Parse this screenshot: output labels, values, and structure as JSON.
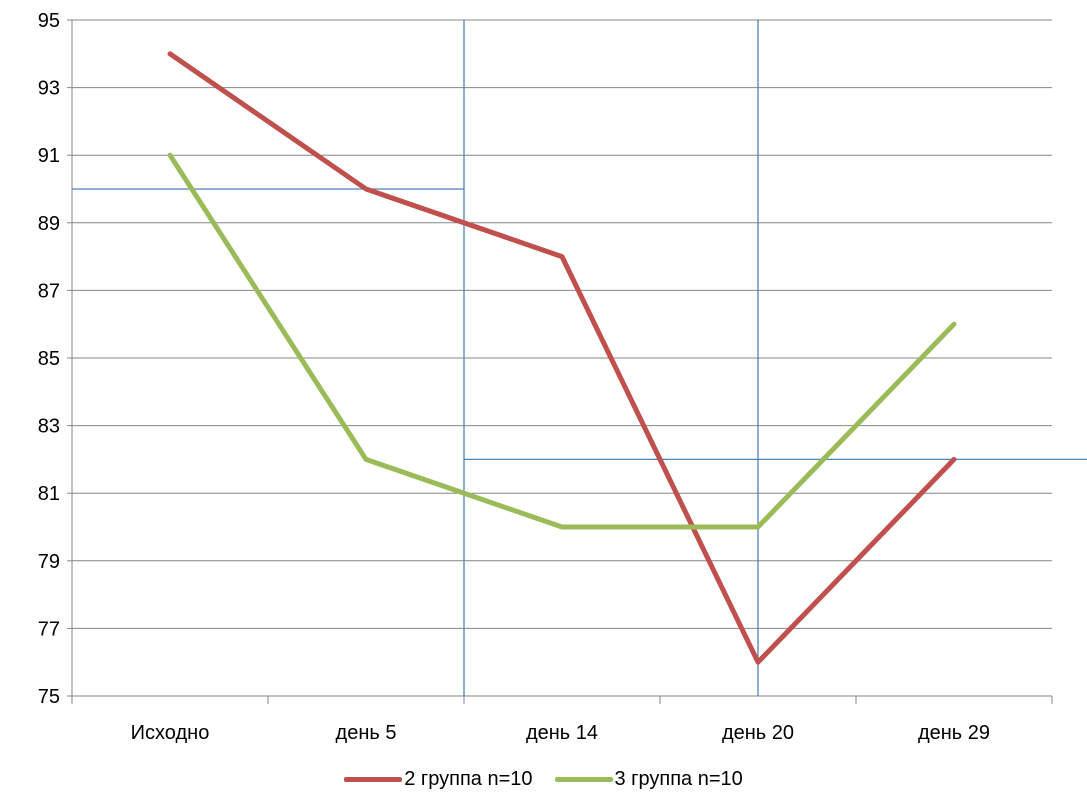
{
  "chart_data": {
    "type": "line",
    "categories": [
      "Исходно",
      "день 5",
      "день 14",
      "день 20",
      "день 29"
    ],
    "ylim": [
      75,
      95
    ],
    "yticks": [
      75,
      77,
      79,
      81,
      83,
      85,
      87,
      89,
      91,
      93,
      95
    ],
    "grid": true,
    "legend_position": "bottom",
    "series": [
      {
        "name": "2 группа n=10",
        "color": "#c0504d",
        "values": [
          94,
          90,
          88,
          76,
          82
        ]
      },
      {
        "name": "3 группа n=10",
        "color": "#9bbb59",
        "values": [
          91,
          82,
          80,
          80,
          86
        ]
      }
    ],
    "reference_lines": {
      "color": "#4f81bd",
      "horizontal": [
        {
          "y": 90,
          "from_category": "Исходно",
          "to_category": "день 14"
        },
        {
          "y": 82,
          "from_category": "день 14",
          "to_category": "день 29"
        }
      ],
      "vertical_between_categories": [
        [
          "день 5",
          "день 14"
        ]
      ],
      "vertical_at_category": [
        "день 20"
      ]
    }
  }
}
